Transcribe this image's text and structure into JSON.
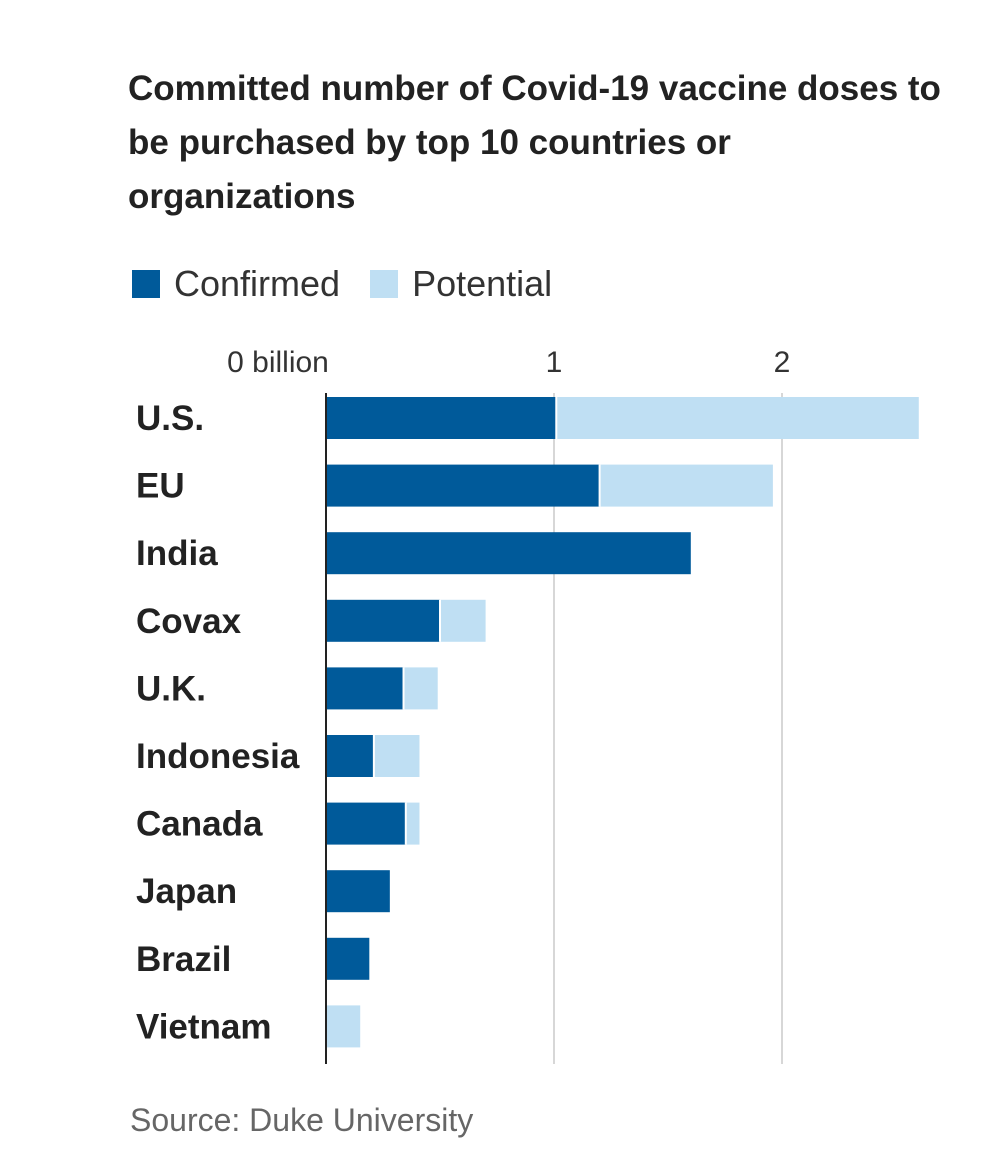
{
  "chart_data": {
    "type": "bar",
    "orientation": "horizontal",
    "stacked": true,
    "title": "Committed number of Covid-19 vaccine doses to be purchased by top 10 countries or organizations",
    "xlabel": "",
    "ylabel": "",
    "xlim": [
      0,
      2.6
    ],
    "ticks": [
      {
        "value": 0,
        "label": "0 billion"
      },
      {
        "value": 1,
        "label": "1"
      },
      {
        "value": 2,
        "label": "2"
      }
    ],
    "grid": true,
    "legend_position": "top-left",
    "categories": [
      "U.S.",
      "EU",
      "India",
      "Covax",
      "U.K.",
      "Indonesia",
      "Canada",
      "Japan",
      "Brazil",
      "Vietnam"
    ],
    "series": [
      {
        "name": "Confirmed",
        "color": "#005a9a",
        "values": [
          1.01,
          1.2,
          1.6,
          0.5,
          0.34,
          0.21,
          0.35,
          0.28,
          0.19,
          0.0
        ]
      },
      {
        "name": "Potential",
        "color": "#bfdff3",
        "values": [
          1.59,
          0.76,
          0.0,
          0.2,
          0.15,
          0.2,
          0.06,
          0.0,
          0.0,
          0.15
        ]
      }
    ],
    "source": "Source: Duke University"
  }
}
